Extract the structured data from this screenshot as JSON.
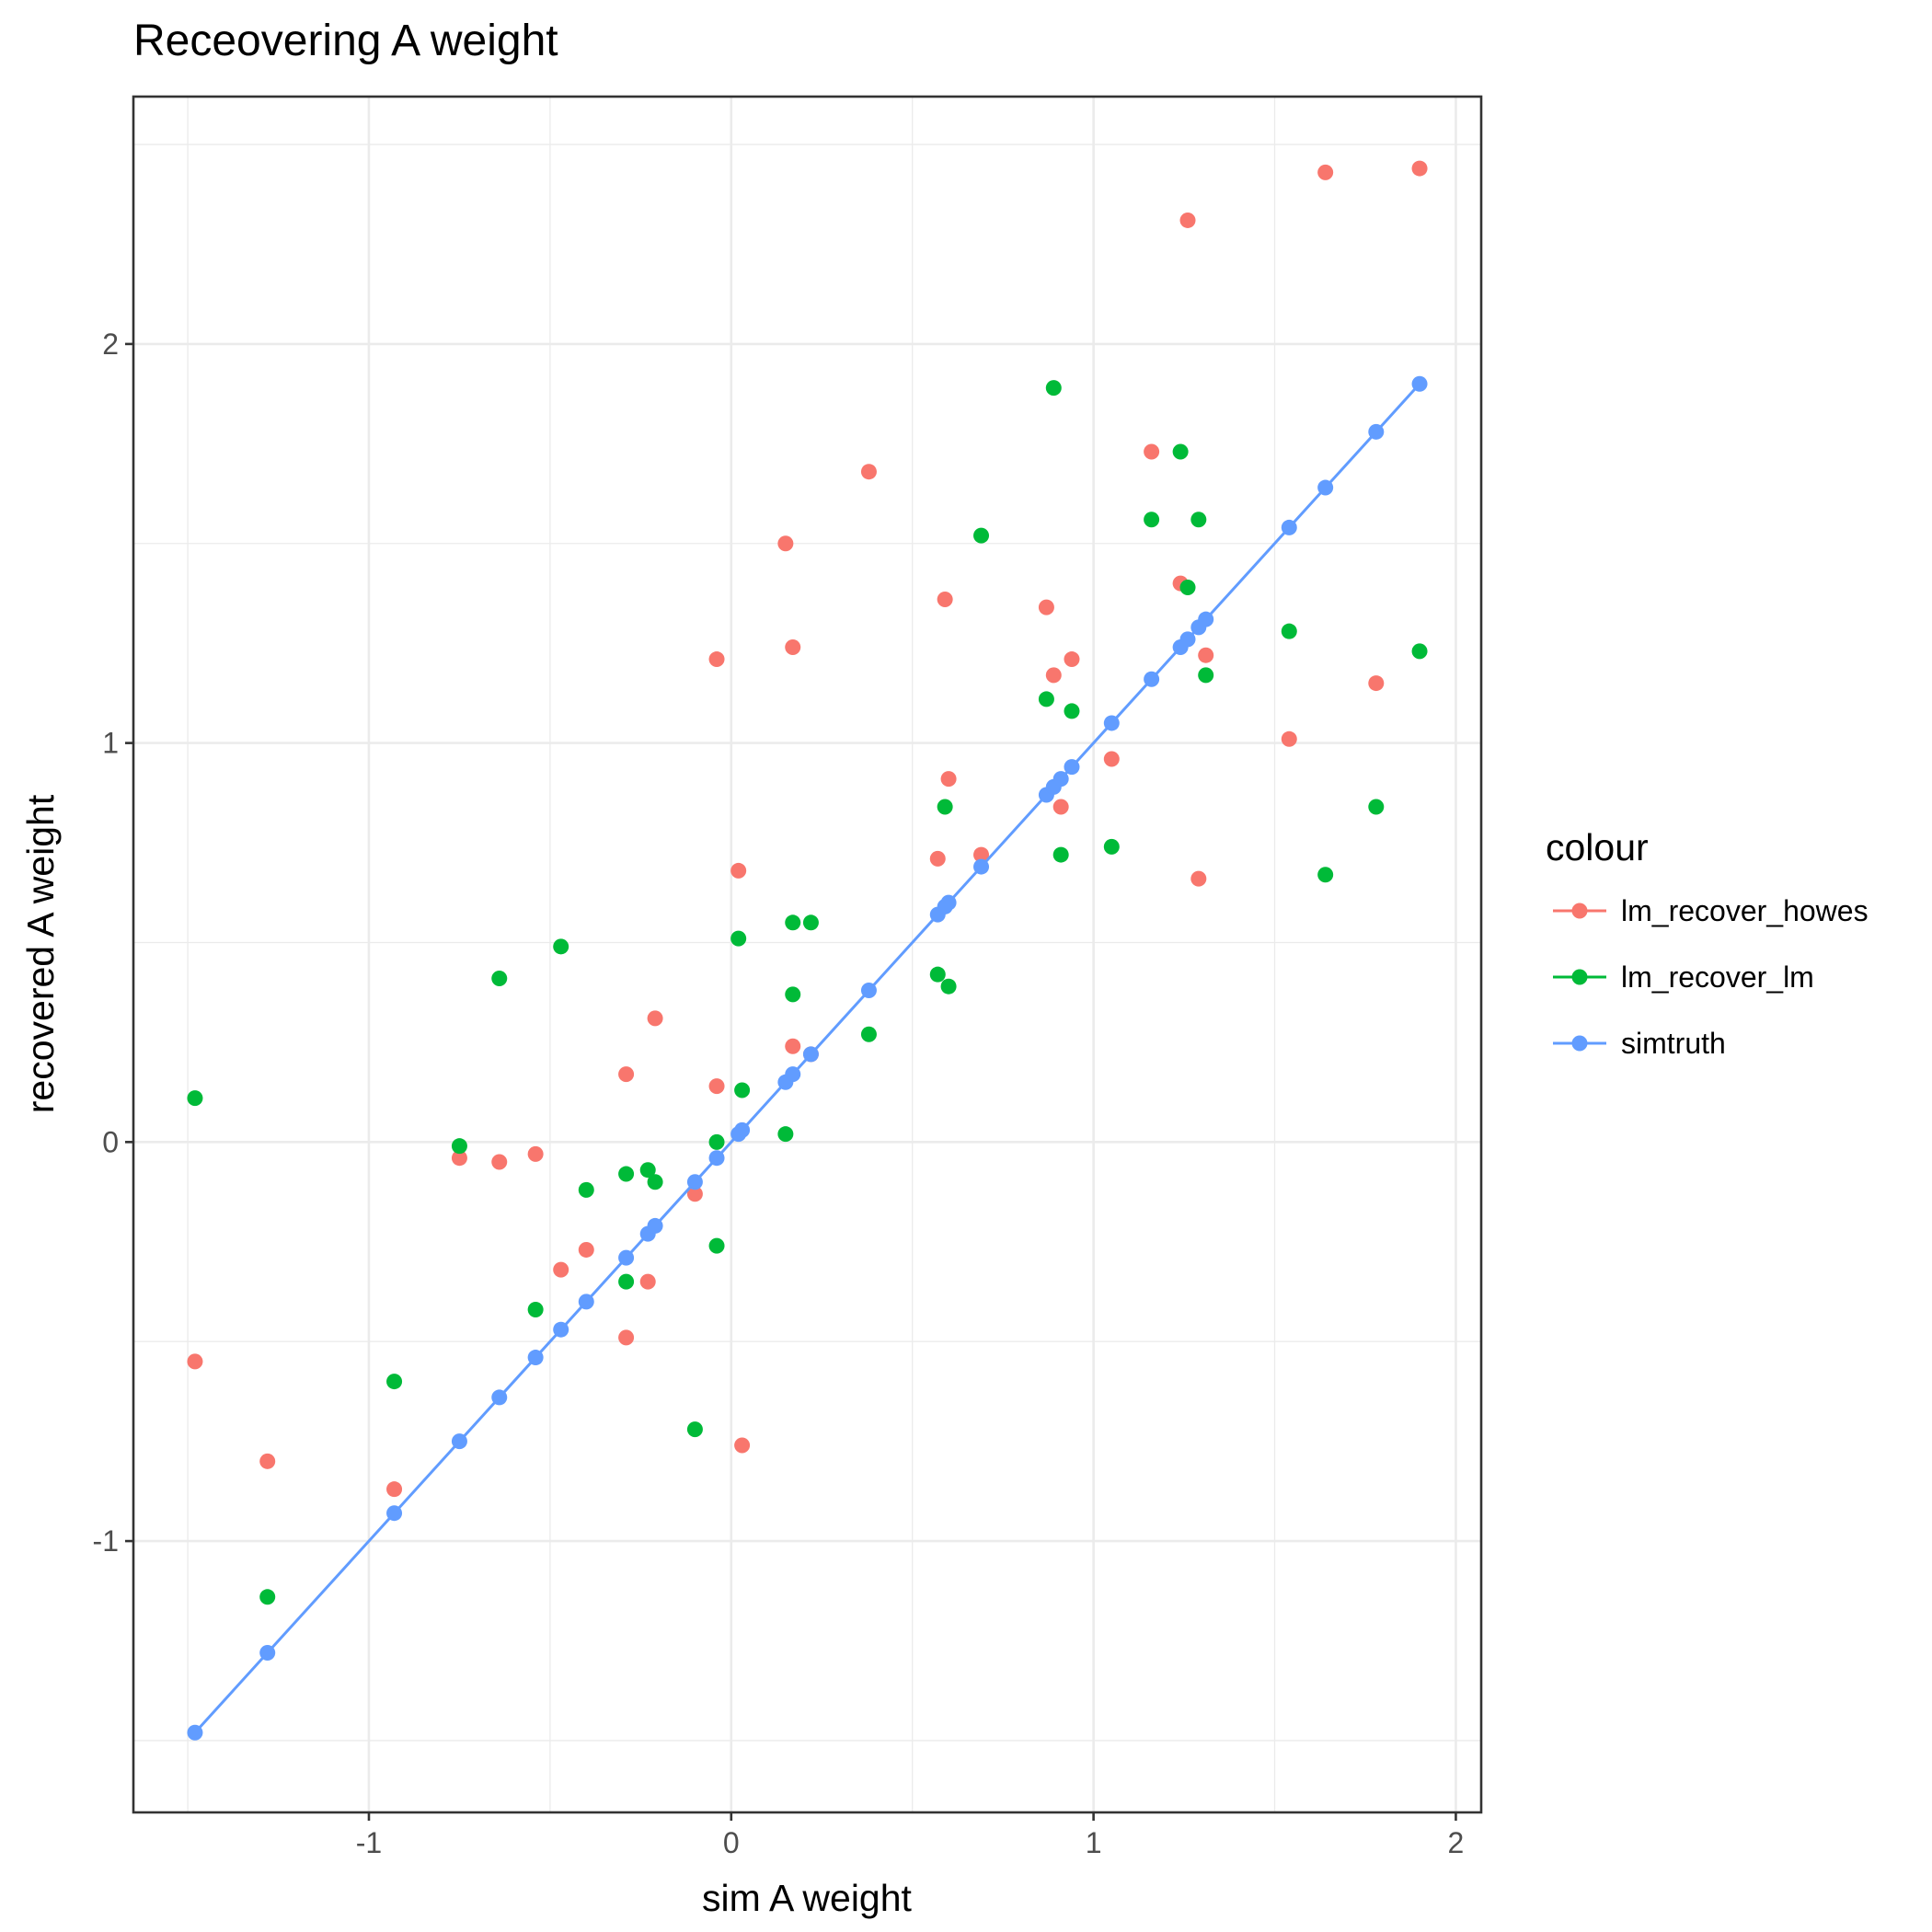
{
  "colors": {
    "lm_recover_howes": "#F8766D",
    "lm_recover_lm": "#00BA38",
    "simtruth": "#619CFF"
  },
  "chart_data": {
    "type": "scatter",
    "title": "Receovering A weight",
    "xlabel": "sim A weight",
    "ylabel": "recovered A weight",
    "xlim": [
      -1.65,
      2.07
    ],
    "ylim": [
      -1.68,
      2.62
    ],
    "x_ticks": [
      -1,
      0,
      1,
      2
    ],
    "x_tick_labels": [
      "-1",
      "0",
      "1",
      "2"
    ],
    "y_ticks": [
      -1,
      0,
      1,
      2
    ],
    "y_tick_labels": [
      "-1",
      "0",
      "1",
      "2"
    ],
    "grid": true,
    "legend": {
      "title": "colour",
      "position": "right",
      "entries": [
        "lm_recover_howes",
        "lm_recover_lm",
        "simtruth"
      ]
    },
    "series": [
      {
        "name": "lm_recover_howes",
        "mode": "points",
        "x": [
          -1.48,
          -1.28,
          -0.93,
          -0.75,
          -0.64,
          -0.54,
          -0.47,
          -0.4,
          -0.29,
          -0.29,
          -0.23,
          -0.21,
          -0.1,
          -0.04,
          -0.04,
          0.02,
          0.03,
          0.15,
          0.17,
          0.17,
          0.22,
          0.38,
          0.57,
          0.59,
          0.6,
          0.69,
          0.87,
          0.89,
          0.91,
          0.94,
          1.05,
          1.16,
          1.24,
          1.26,
          1.29,
          1.31,
          1.54,
          1.64,
          1.78,
          1.9
        ],
        "y": [
          -0.55,
          -0.8,
          -0.87,
          -0.04,
          -0.05,
          -0.03,
          -0.32,
          -0.27,
          0.17,
          -0.49,
          -0.35,
          0.31,
          -0.13,
          0.14,
          1.21,
          0.68,
          -0.76,
          1.5,
          1.24,
          0.24,
          0.22,
          1.68,
          0.71,
          1.36,
          0.91,
          0.72,
          1.34,
          1.17,
          0.84,
          1.21,
          0.96,
          1.73,
          1.4,
          2.31,
          0.66,
          1.22,
          1.01,
          2.43,
          1.15,
          2.44
        ]
      },
      {
        "name": "lm_recover_lm",
        "mode": "points",
        "x": [
          -1.48,
          -1.28,
          -0.93,
          -0.75,
          -0.64,
          -0.54,
          -0.47,
          -0.4,
          -0.29,
          -0.29,
          -0.23,
          -0.21,
          -0.1,
          -0.04,
          -0.04,
          0.02,
          0.03,
          0.15,
          0.17,
          0.17,
          0.22,
          0.38,
          0.57,
          0.59,
          0.6,
          0.69,
          0.87,
          0.89,
          0.91,
          0.94,
          1.05,
          1.16,
          1.24,
          1.26,
          1.29,
          1.31,
          1.54,
          1.64,
          1.78,
          1.9
        ],
        "y": [
          0.11,
          -1.14,
          -0.6,
          -0.01,
          0.41,
          -0.42,
          0.49,
          -0.12,
          -0.08,
          -0.35,
          -0.07,
          -0.1,
          -0.72,
          -0.26,
          0.0,
          0.51,
          0.13,
          0.02,
          0.37,
          0.55,
          0.55,
          0.27,
          0.42,
          0.84,
          0.39,
          1.52,
          1.11,
          1.89,
          0.72,
          1.08,
          0.74,
          1.56,
          1.73,
          1.39,
          1.56,
          1.17,
          1.28,
          0.67,
          0.84,
          1.23
        ]
      },
      {
        "name": "simtruth",
        "mode": "lines+points",
        "x": [
          -1.48,
          -1.28,
          -0.93,
          -0.75,
          -0.64,
          -0.54,
          -0.47,
          -0.4,
          -0.29,
          -0.23,
          -0.21,
          -0.1,
          -0.04,
          0.02,
          0.03,
          0.15,
          0.17,
          0.22,
          0.38,
          0.57,
          0.59,
          0.6,
          0.69,
          0.87,
          0.89,
          0.91,
          0.94,
          1.05,
          1.16,
          1.24,
          1.26,
          1.29,
          1.31,
          1.54,
          1.64,
          1.78,
          1.9
        ],
        "y": [
          -1.48,
          -1.28,
          -0.93,
          -0.75,
          -0.64,
          -0.54,
          -0.47,
          -0.4,
          -0.29,
          -0.23,
          -0.21,
          -0.1,
          -0.04,
          0.02,
          0.03,
          0.15,
          0.17,
          0.22,
          0.38,
          0.57,
          0.59,
          0.6,
          0.69,
          0.87,
          0.89,
          0.91,
          0.94,
          1.05,
          1.16,
          1.24,
          1.26,
          1.29,
          1.31,
          1.54,
          1.64,
          1.78,
          1.9
        ]
      }
    ]
  }
}
